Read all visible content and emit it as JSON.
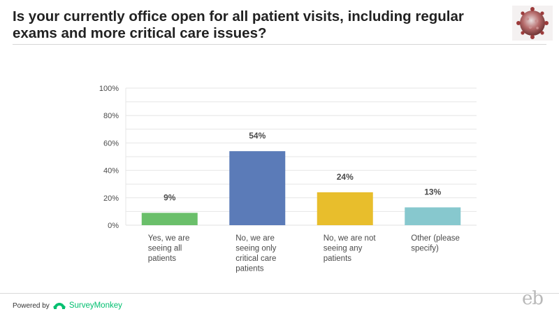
{
  "title": "Is your currently office open for all patient visits, including regular exams and more critical care issues?",
  "footer": {
    "powered_by": "Powered by",
    "brand": "SurveyMonkey",
    "corner_logo": "eb"
  },
  "colors": {
    "grid": "#e6e6e6",
    "axis_text": "#4a4a4a",
    "brand_green": "#00bf6f"
  },
  "chart_data": {
    "type": "bar",
    "categories": [
      [
        "Yes, we are",
        "seeing all",
        "patients"
      ],
      [
        "No, we are",
        "seeing only",
        "critical care",
        "patients"
      ],
      [
        "No, we are not",
        "seeing any",
        "patients"
      ],
      [
        "Other (please",
        "specify)"
      ]
    ],
    "values": [
      9,
      54,
      24,
      13
    ],
    "data_labels": [
      "9%",
      "54%",
      "24%",
      "13%"
    ],
    "bar_colors": [
      "#6abf6a",
      "#5b7bb8",
      "#e8be2c",
      "#87c8ce"
    ],
    "ylim": [
      0,
      100
    ],
    "yticks": [
      0,
      20,
      40,
      60,
      80,
      100
    ],
    "ytick_labels": [
      "0%",
      "20%",
      "40%",
      "60%",
      "80%",
      "100%"
    ],
    "grid": true,
    "legend": "none"
  }
}
